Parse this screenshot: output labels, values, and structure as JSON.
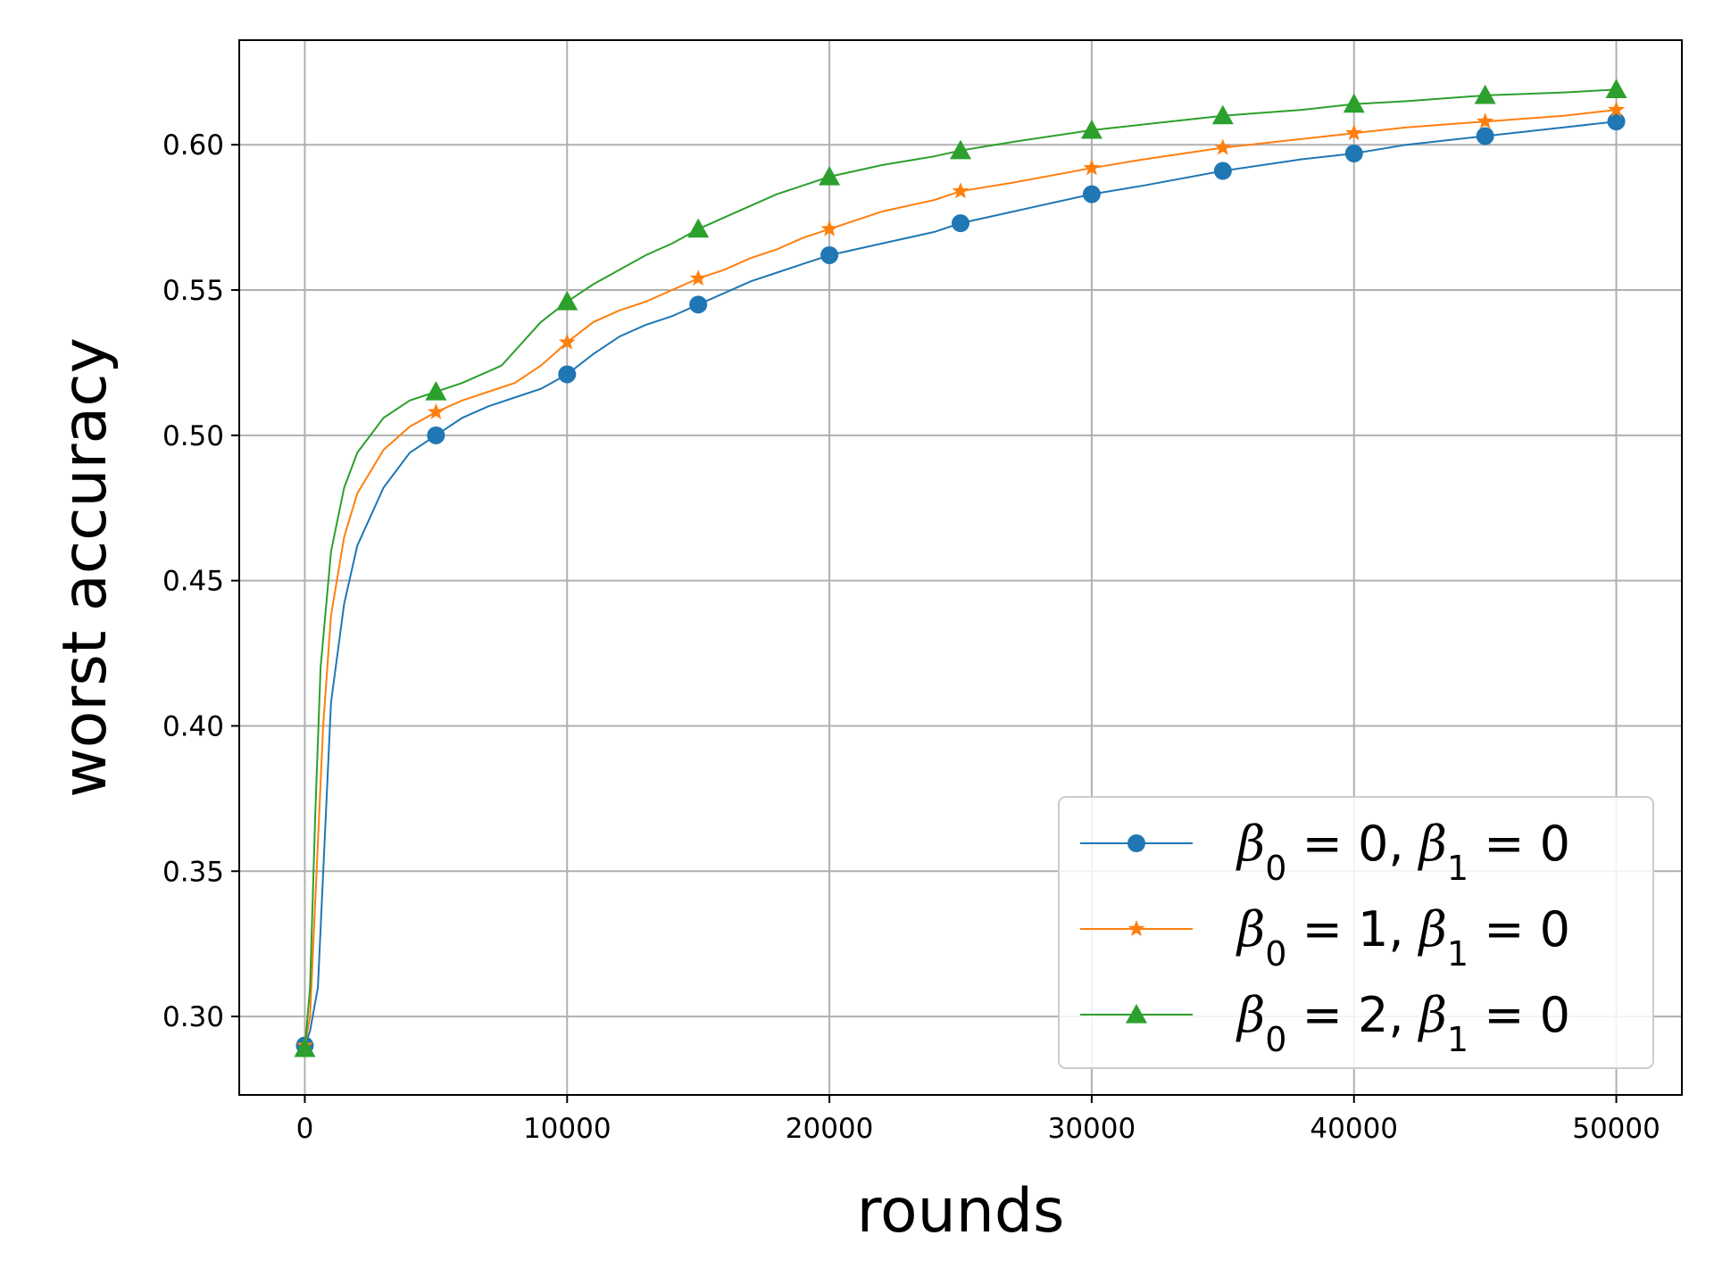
{
  "chart_data": {
    "type": "line",
    "title": "",
    "xlabel": "rounds",
    "ylabel": "worst accuracy",
    "xlim": [
      -2500,
      52500
    ],
    "ylim": [
      0.273,
      0.636
    ],
    "x_ticks": [
      0,
      10000,
      20000,
      30000,
      40000,
      50000
    ],
    "y_ticks": [
      0.3,
      0.35,
      0.4,
      0.45,
      0.5,
      0.55,
      0.6
    ],
    "grid": true,
    "legend_position": "lower-right",
    "marker_x": [
      0,
      5000,
      10000,
      15000,
      20000,
      25000,
      30000,
      35000,
      40000,
      45000,
      50000
    ],
    "series": [
      {
        "name_parts": {
          "b0": "0",
          "b1": "0"
        },
        "color": "#1f77b4",
        "marker": "circle",
        "curve_x": [
          0,
          200,
          500,
          1000,
          1500,
          2000,
          3000,
          4000,
          5000,
          6000,
          7000,
          8000,
          9000,
          10000,
          11000,
          12000,
          13000,
          14000,
          15000,
          16000,
          17000,
          18000,
          19000,
          20000,
          22000,
          24000,
          25000,
          27000,
          30000,
          32000,
          35000,
          38000,
          40000,
          42000,
          45000,
          48000,
          50000
        ],
        "curve_y": [
          0.29,
          0.295,
          0.31,
          0.408,
          0.442,
          0.462,
          0.482,
          0.494,
          0.5,
          0.506,
          0.51,
          0.513,
          0.516,
          0.521,
          0.528,
          0.534,
          0.538,
          0.541,
          0.545,
          0.549,
          0.553,
          0.556,
          0.559,
          0.562,
          0.566,
          0.57,
          0.573,
          0.577,
          0.583,
          0.586,
          0.591,
          0.595,
          0.597,
          0.6,
          0.603,
          0.606,
          0.608
        ],
        "marker_y": [
          0.29,
          0.5,
          0.521,
          0.545,
          0.562,
          0.573,
          0.583,
          0.591,
          0.597,
          0.603,
          0.608
        ]
      },
      {
        "name_parts": {
          "b0": "1",
          "b1": "0"
        },
        "color": "#ff7f0e",
        "marker": "star",
        "curve_x": [
          0,
          200,
          400,
          700,
          1000,
          1500,
          2000,
          3000,
          4000,
          5000,
          6000,
          7000,
          8000,
          9000,
          10000,
          11000,
          12000,
          13000,
          14000,
          15000,
          16000,
          17000,
          18000,
          19000,
          20000,
          22000,
          24000,
          25000,
          27000,
          30000,
          32000,
          35000,
          38000,
          40000,
          42000,
          45000,
          48000,
          50000
        ],
        "curve_y": [
          0.29,
          0.3,
          0.34,
          0.4,
          0.438,
          0.465,
          0.48,
          0.495,
          0.503,
          0.508,
          0.512,
          0.515,
          0.518,
          0.524,
          0.532,
          0.539,
          0.543,
          0.546,
          0.55,
          0.554,
          0.557,
          0.561,
          0.564,
          0.568,
          0.571,
          0.577,
          0.581,
          0.584,
          0.587,
          0.592,
          0.595,
          0.599,
          0.602,
          0.604,
          0.606,
          0.608,
          0.61,
          0.612
        ],
        "marker_y": [
          0.29,
          0.508,
          0.532,
          0.554,
          0.571,
          0.584,
          0.592,
          0.599,
          0.604,
          0.608,
          0.612
        ]
      },
      {
        "name_parts": {
          "b0": "2",
          "b1": "0"
        },
        "color": "#2ca02c",
        "marker": "triangle",
        "curve_x": [
          0,
          200,
          400,
          600,
          1000,
          1500,
          2000,
          3000,
          4000,
          5000,
          6000,
          7000,
          7500,
          8000,
          9000,
          10000,
          11000,
          12000,
          13000,
          14000,
          15000,
          16000,
          17000,
          18000,
          19000,
          20000,
          22000,
          24000,
          25000,
          27000,
          30000,
          32000,
          35000,
          38000,
          40000,
          42000,
          45000,
          48000,
          50000
        ],
        "curve_y": [
          0.289,
          0.31,
          0.37,
          0.42,
          0.46,
          0.482,
          0.494,
          0.506,
          0.512,
          0.515,
          0.518,
          0.522,
          0.524,
          0.529,
          0.539,
          0.546,
          0.552,
          0.557,
          0.562,
          0.566,
          0.571,
          0.575,
          0.579,
          0.583,
          0.586,
          0.589,
          0.593,
          0.596,
          0.598,
          0.601,
          0.605,
          0.607,
          0.61,
          0.612,
          0.614,
          0.615,
          0.617,
          0.618,
          0.619
        ],
        "marker_y": [
          0.289,
          0.515,
          0.546,
          0.571,
          0.589,
          0.598,
          0.605,
          0.61,
          0.614,
          0.617,
          0.619
        ]
      }
    ]
  }
}
